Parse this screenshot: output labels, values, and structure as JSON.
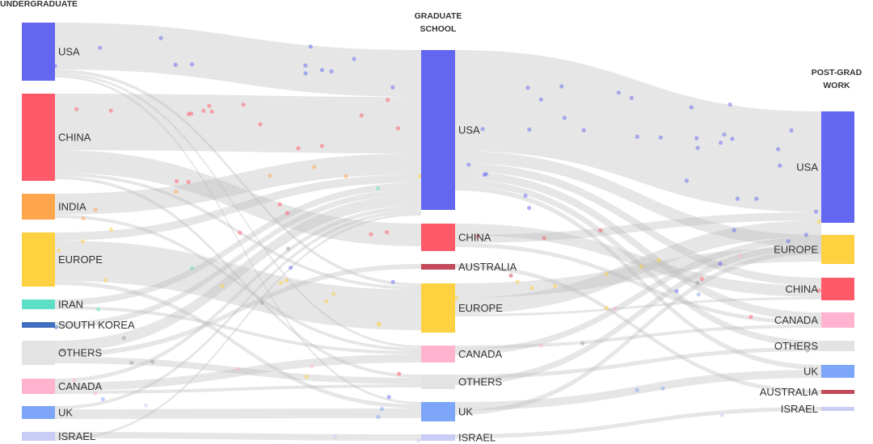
{
  "columns": [
    {
      "title": "UNDERGRADUATE",
      "nodes": [
        "USA",
        "CHINA",
        "INDIA",
        "EUROPE",
        "IRAN",
        "SOUTH KOREA",
        "OTHERS",
        "CANADA",
        "UK",
        "ISRAEL"
      ]
    },
    {
      "title": "GRADUATE SCHOOL",
      "nodes": [
        "USA",
        "CHINA",
        "AUSTRALIA",
        "EUROPE",
        "CANADA",
        "OTHERS",
        "UK",
        "ISRAEL"
      ]
    },
    {
      "title": "POST-GRAD WORK",
      "nodes": [
        "USA",
        "EUROPE",
        "CHINA",
        "CANADA",
        "OTHERS",
        "UK",
        "AUSTRALIA",
        "ISRAEL"
      ]
    }
  ]
}
